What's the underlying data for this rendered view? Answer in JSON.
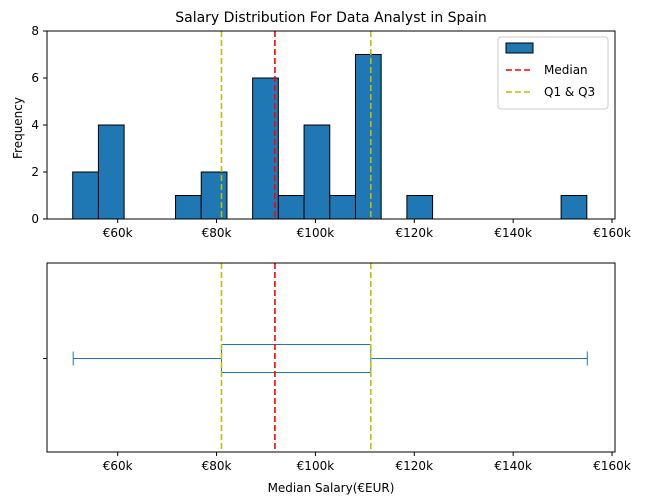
{
  "chart_data": [
    {
      "type": "histogram",
      "title": "Salary Distribution For Data Analyst in Spain",
      "xlabel": "",
      "ylabel": "Frequency",
      "xlim": [
        45700,
        160600
      ],
      "ylim": [
        0,
        8
      ],
      "xticks": [
        60000,
        80000,
        100000,
        120000,
        140000,
        160000
      ],
      "xtick_labels": [
        "€60k",
        "€80k",
        "€100k",
        "€120k",
        "€140k",
        "€160k"
      ],
      "yticks": [
        0,
        2,
        4,
        6,
        8
      ],
      "ytick_labels": [
        "0",
        "2",
        "4",
        "6",
        "8"
      ],
      "bin_edges": [
        50900,
        56100,
        61300,
        66500,
        71700,
        76900,
        82100,
        87300,
        92500,
        97700,
        102900,
        108100,
        113300,
        118500,
        123700,
        128900,
        134100,
        139300,
        144500,
        149700,
        154900
      ],
      "counts": [
        2,
        4,
        0,
        0,
        1,
        2,
        0,
        6,
        1,
        4,
        1,
        7,
        0,
        1,
        0,
        0,
        0,
        0,
        0,
        1
      ],
      "bar_color": "#1f77b4",
      "bar_edge_color": "#000000",
      "median": 91800,
      "q1": 81000,
      "q3": 111200,
      "median_color": "#ff0000",
      "quartile_color": "#bfbf00",
      "legend": {
        "placement": "top-right",
        "entries": [
          {
            "label": "",
            "kind": "patch"
          },
          {
            "label": "Median",
            "kind": "dashed",
            "color": "#ff0000"
          },
          {
            "label": "Q1 & Q3",
            "kind": "dashed",
            "color": "#bfbf00"
          }
        ]
      }
    },
    {
      "type": "boxplot",
      "orientation": "horizontal",
      "xlabel": "Median Salary(€EUR)",
      "xlim": [
        45700,
        160600
      ],
      "xticks": [
        60000,
        80000,
        100000,
        120000,
        140000,
        160000
      ],
      "xtick_labels": [
        "€60k",
        "€80k",
        "€100k",
        "€120k",
        "€140k",
        "€160k"
      ],
      "whisker_low": 51000,
      "q1": 81000,
      "median": 91800,
      "q3": 111200,
      "whisker_high": 155000,
      "box_color": "#1f77b4",
      "median_color": "#ff0000",
      "quartile_color": "#bfbf00"
    }
  ]
}
